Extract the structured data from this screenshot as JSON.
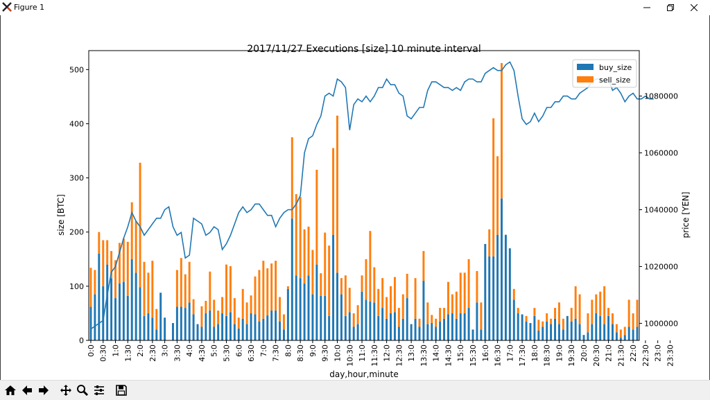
{
  "window": {
    "title": "Figure 1"
  },
  "toolbar": {
    "buttons": [
      "home-icon",
      "back-arrow-icon",
      "forward-arrow-icon",
      "pan-icon",
      "zoom-icon",
      "configure-subplots-icon",
      "save-icon"
    ]
  },
  "chart_data": {
    "type": "bar",
    "stacked": true,
    "title": "2017/11/27 Executions [size] 10 minute interval",
    "xlabel": "day,hour,minute",
    "ylabel": "size [BTC]",
    "y2label": "price [YEN]",
    "ylim": [
      0,
      535
    ],
    "y2lim": [
      994000,
      1096000
    ],
    "yticks": [
      0,
      100,
      200,
      300,
      400,
      500
    ],
    "y2ticks": [
      1000000,
      1020000,
      1040000,
      1060000,
      1080000
    ],
    "y2ticklabels": [
      "1000000",
      "1020000",
      "1040000",
      "1060000",
      "1080000"
    ],
    "xticklabels": [
      "0:0",
      "0:30",
      "1:0",
      "1:30",
      "2:0",
      "2:30",
      "3:0",
      "3:30",
      "4:0",
      "4:30",
      "5:0",
      "5:30",
      "6:0",
      "6:30",
      "7:0",
      "7:30",
      "8:0",
      "8:30",
      "9:0",
      "9:30",
      "10:0",
      "10:30",
      "11:0",
      "11:30",
      "12:0",
      "12:30",
      "13:0",
      "13:30",
      "14:0",
      "14:30",
      "15:0",
      "15:30",
      "16:0",
      "16:30",
      "17:0",
      "17:30",
      "18:0",
      "18:30",
      "19:0",
      "19:30",
      "20:0",
      "20:30",
      "21:0",
      "21:30",
      "22:0",
      "22:30",
      "23:0",
      "23:30"
    ],
    "legend": {
      "position": "upper right"
    },
    "colors": {
      "buy": "#1f77b4",
      "sell": "#ff7f0e",
      "price": "#1f77b4"
    },
    "series": [
      {
        "name": "buy_size",
        "values": [
          62,
          85,
          160,
          100,
          140,
          115,
          78,
          105,
          108,
          82,
          150,
          125,
          98,
          45,
          50,
          42,
          20,
          88,
          42,
          0,
          32,
          62,
          62,
          60,
          70,
          48,
          30,
          25,
          50,
          55,
          25,
          30,
          50,
          45,
          52,
          30,
          22,
          40,
          30,
          50,
          48,
          35,
          40,
          46,
          55,
          55,
          35,
          20,
          95,
          225,
          120,
          115,
          105,
          120,
          85,
          140,
          82,
          82,
          45,
          195,
          125,
          85,
          45,
          52,
          25,
          30,
          90,
          75,
          72,
          70,
          45,
          60,
          40,
          50,
          52,
          25,
          40,
          78,
          30,
          40,
          25,
          110,
          30,
          32,
          25,
          35,
          40,
          48,
          50,
          40,
          50,
          50,
          60,
          20,
          70,
          20,
          178,
          155,
          155,
          195,
          262,
          195,
          170,
          75,
          50,
          48,
          35,
          32,
          45,
          18,
          25,
          35,
          30,
          40,
          30,
          20,
          45,
          35,
          40,
          30,
          10,
          15,
          30,
          50,
          45,
          30,
          45,
          30,
          15,
          5,
          10,
          25,
          20,
          25
        ]
      },
      {
        "name": "sell_size",
        "values": [
          72,
          45,
          40,
          85,
          45,
          50,
          70,
          75,
          80,
          100,
          105,
          95,
          230,
          100,
          75,
          105,
          38,
          0,
          0,
          0,
          0,
          68,
          90,
          62,
          75,
          28,
          0,
          38,
          23,
          72,
          50,
          25,
          30,
          95,
          85,
          48,
          20,
          55,
          40,
          33,
          70,
          95,
          107,
          87,
          87,
          92,
          45,
          28,
          5,
          150,
          150,
          150,
          100,
          90,
          82,
          175,
          42,
          117,
          130,
          160,
          290,
          30,
          75,
          45,
          25,
          35,
          30,
          75,
          130,
          65,
          50,
          55,
          40,
          50,
          65,
          35,
          45,
          45,
          0,
          75,
          15,
          55,
          40,
          15,
          15,
          25,
          20,
          60,
          35,
          50,
          75,
          75,
          90,
          0,
          58,
          50,
          0,
          50,
          255,
          145,
          250,
          0,
          0,
          20,
          10,
          0,
          10,
          0,
          15,
          20,
          10,
          15,
          10,
          20,
          40,
          20,
          0,
          25,
          60,
          55,
          0,
          35,
          45,
          35,
          45,
          70,
          15,
          20,
          15,
          15,
          15,
          50,
          30,
          50
        ]
      },
      {
        "name": "price",
        "values": [
          998000,
          999000,
          1000000,
          1001000,
          1010000,
          1018000,
          1020000,
          1025000,
          1030000,
          1034000,
          1039000,
          1036000,
          1034000,
          1031000,
          1033000,
          1035000,
          1037000,
          1037000,
          1040000,
          1041000,
          1034000,
          1031000,
          1032000,
          1023000,
          1024000,
          1037000,
          1036000,
          1035000,
          1031000,
          1032000,
          1034000,
          1033000,
          1026000,
          1028000,
          1031000,
          1035000,
          1039000,
          1041000,
          1039000,
          1040000,
          1042000,
          1042000,
          1040000,
          1038000,
          1038000,
          1034000,
          1037000,
          1039000,
          1040000,
          1040000,
          1042000,
          1045000,
          1060000,
          1065000,
          1066000,
          1070000,
          1073000,
          1080000,
          1081000,
          1080000,
          1086000,
          1085000,
          1083000,
          1068000,
          1077000,
          1079000,
          1078000,
          1080000,
          1078000,
          1080000,
          1083000,
          1083000,
          1086000,
          1084000,
          1084000,
          1081000,
          1080000,
          1073000,
          1072000,
          1074000,
          1076000,
          1076000,
          1082000,
          1085000,
          1085000,
          1084000,
          1083000,
          1083000,
          1082000,
          1083000,
          1082000,
          1085000,
          1086000,
          1086000,
          1085000,
          1085000,
          1088000,
          1089000,
          1090000,
          1089000,
          1089000,
          1091000,
          1092000,
          1089000,
          1080000,
          1072000,
          1070000,
          1071000,
          1074000,
          1071000,
          1073000,
          1076000,
          1076000,
          1078000,
          1078000,
          1080000,
          1080000,
          1079000,
          1079000,
          1081000,
          1082000,
          1083000,
          1085000,
          1086000,
          1086000,
          1085000,
          1086000,
          1082000,
          1083000,
          1081000,
          1078000,
          1080000,
          1081000,
          1079000,
          1079000,
          1080000,
          1079000,
          1079000
        ]
      }
    ]
  }
}
